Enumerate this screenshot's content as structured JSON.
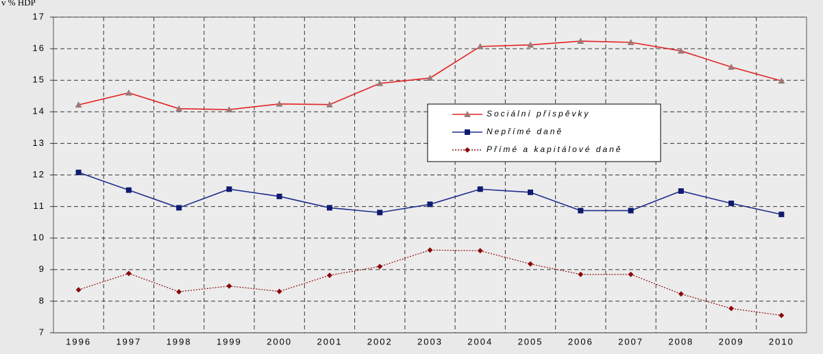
{
  "chart_data": {
    "type": "line",
    "ylabel": "v % HDP",
    "categories": [
      "1996",
      "1997",
      "1998",
      "1999",
      "2000",
      "2001",
      "2002",
      "2003",
      "2004",
      "2005",
      "2006",
      "2007",
      "2008",
      "2009",
      "2010"
    ],
    "series": [
      {
        "name": "Sociální příspěvky",
        "color": "#e32222",
        "marker_color": "#9a7a78",
        "marker": "triangle",
        "line_style": "solid",
        "values": [
          14.22,
          14.6,
          14.1,
          14.07,
          14.25,
          14.23,
          14.9,
          15.07,
          16.07,
          16.12,
          16.24,
          16.2,
          15.93,
          15.42,
          14.98
        ]
      },
      {
        "name": "Nepřímé daně",
        "color": "#1c2a8c",
        "marker_color": "#0f1a70",
        "marker": "square",
        "line_style": "solid",
        "values": [
          12.08,
          11.52,
          10.96,
          11.55,
          11.32,
          10.96,
          10.81,
          11.07,
          11.55,
          11.45,
          10.87,
          10.87,
          11.49,
          11.1,
          10.75
        ]
      },
      {
        "name": "Přímé a kapitálové daně",
        "color": "#8b0a0a",
        "marker_color": "#8b0a0a",
        "marker": "diamond",
        "line_style": "dotted",
        "values": [
          8.36,
          8.88,
          8.3,
          8.48,
          8.31,
          8.82,
          9.1,
          9.62,
          9.6,
          9.18,
          8.85,
          8.85,
          8.23,
          7.77,
          7.55
        ]
      }
    ],
    "ylim": [
      7,
      17
    ],
    "yticks": [
      7,
      8,
      9,
      10,
      11,
      12,
      13,
      14,
      15,
      16,
      17
    ],
    "grid": true,
    "legend": "center-right"
  }
}
